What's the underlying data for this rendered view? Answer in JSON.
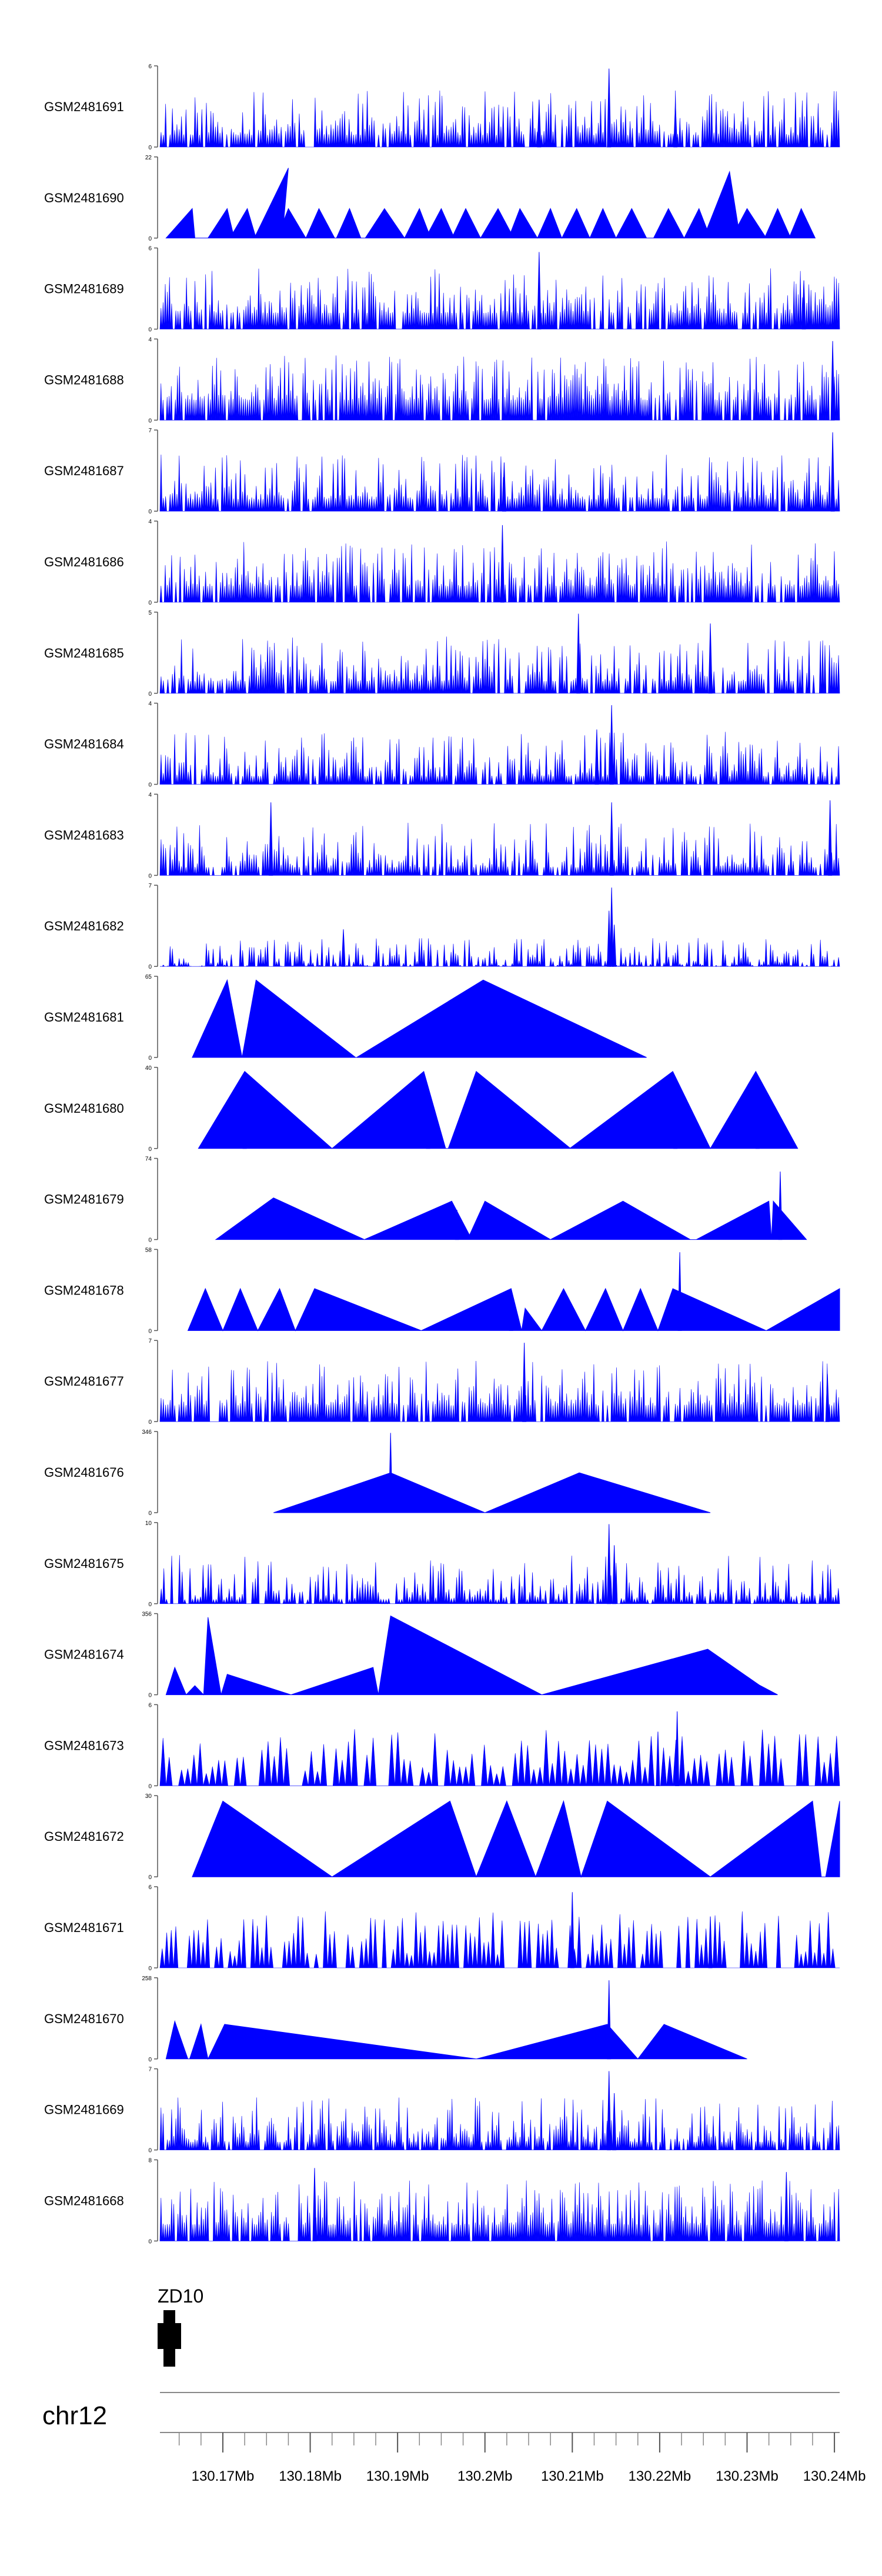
{
  "chart_data": {
    "type": "area",
    "title": "",
    "color": "#0000ff",
    "chromosome": "chr12",
    "gene": {
      "label": "ZD10"
    },
    "xlim": [
      130.1628,
      130.2406
    ],
    "x_ticks": [
      "130.17Mb",
      "130.18Mb",
      "130.19Mb",
      "130.2Mb",
      "130.21Mb",
      "130.22Mb",
      "130.23Mb",
      "130.24Mb"
    ],
    "x_tick_values": [
      130.17,
      130.18,
      130.19,
      130.2,
      130.21,
      130.22,
      130.23,
      130.24
    ],
    "tracks": [
      {
        "name": "GSM2481691",
        "ymax": "6",
        "ymin": "0",
        "style": "dense",
        "seed": 11,
        "n": 300,
        "low": 0.15,
        "spikes": [
          [
            130.2142,
            5.8
          ],
          [
            130.2062,
            3.5
          ],
          [
            130.2218,
            3.2
          ]
        ]
      },
      {
        "name": "GSM2481690",
        "ymax": "22",
        "ymin": "0",
        "style": "peaks",
        "peaks": [
          [
            130.1635,
            130.1668,
            130.1665,
            8
          ],
          [
            130.1683,
            130.1713,
            130.1705,
            8
          ],
          [
            130.1708,
            130.1738,
            130.1728,
            8
          ],
          [
            130.1736,
            130.1768,
            130.1775,
            19
          ],
          [
            130.1762,
            130.1795,
            130.1775,
            8
          ],
          [
            130.1795,
            130.1828,
            130.181,
            8
          ],
          [
            130.183,
            130.1858,
            130.1845,
            8
          ],
          [
            130.1863,
            130.1908,
            130.1885,
            8
          ],
          [
            130.1908,
            130.1938,
            130.1925,
            8
          ],
          [
            130.1932,
            130.1965,
            130.195,
            8
          ],
          [
            130.1962,
            130.1995,
            130.1978,
            8
          ],
          [
            130.1995,
            130.2033,
            130.2015,
            8
          ],
          [
            130.2027,
            130.206,
            130.204,
            8
          ],
          [
            130.206,
            130.2088,
            130.2075,
            8
          ],
          [
            130.2088,
            130.212,
            130.2105,
            8
          ],
          [
            130.212,
            130.215,
            130.2135,
            8
          ],
          [
            130.215,
            130.2185,
            130.2168,
            8
          ],
          [
            130.2193,
            130.2228,
            130.221,
            8
          ],
          [
            130.2228,
            130.2258,
            130.2245,
            8
          ],
          [
            130.225,
            130.2292,
            130.228,
            18
          ],
          [
            130.2282,
            130.2322,
            130.23,
            8
          ],
          [
            130.232,
            130.235,
            130.2335,
            8
          ],
          [
            130.2348,
            130.2378,
            130.2362,
            8
          ]
        ]
      },
      {
        "name": "GSM2481689",
        "ymax": "6",
        "ymin": "0",
        "style": "dense",
        "seed": 23,
        "n": 320,
        "low": 0.2,
        "spikes": [
          [
            130.2062,
            5.7
          ],
          [
            130.2365,
            3.6
          ]
        ]
      },
      {
        "name": "GSM2481688",
        "ymax": "4",
        "ymin": "0",
        "style": "dense",
        "seed": 37,
        "n": 330,
        "low": 0.25,
        "spikes": [
          [
            130.2398,
            3.9
          ]
        ]
      },
      {
        "name": "GSM2481687",
        "ymax": "7",
        "ymin": "0",
        "style": "dense",
        "seed": 41,
        "n": 300,
        "low": 0.15,
        "spikes": [
          [
            130.2398,
            6.8
          ],
          [
            130.2022,
            4.2
          ]
        ]
      },
      {
        "name": "GSM2481686",
        "ymax": "4",
        "ymin": "0",
        "style": "dense",
        "seed": 53,
        "n": 320,
        "low": 0.2,
        "spikes": [
          [
            130.202,
            3.8
          ]
        ]
      },
      {
        "name": "GSM2481685",
        "ymax": "5",
        "ymin": "0",
        "style": "dense",
        "seed": 67,
        "n": 300,
        "low": 0.15,
        "spikes": [
          [
            130.2107,
            4.9
          ],
          [
            130.2258,
            4.3
          ]
        ]
      },
      {
        "name": "GSM2481684",
        "ymax": "4",
        "ymin": "0",
        "style": "dense",
        "seed": 71,
        "n": 300,
        "low": 0.1,
        "spikes": [
          [
            130.2145,
            3.9
          ],
          [
            130.2128,
            2.7
          ]
        ]
      },
      {
        "name": "GSM2481683",
        "ymax": "4",
        "ymin": "0",
        "style": "dense",
        "seed": 83,
        "n": 300,
        "low": 0.1,
        "spikes": [
          [
            130.1755,
            3.6
          ],
          [
            130.2145,
            3.6
          ],
          [
            130.2395,
            3.7
          ]
        ]
      },
      {
        "name": "GSM2481682",
        "ymax": "7",
        "ymin": "0",
        "style": "dense",
        "seed": 97,
        "n": 300,
        "low": 0.0,
        "scale": 0.35,
        "spikes": [
          [
            130.2145,
            6.8
          ],
          [
            130.2142,
            4.8
          ],
          [
            130.2148,
            3.6
          ],
          [
            130.1838,
            3.2
          ]
        ]
      },
      {
        "name": "GSM2481681",
        "ymax": "65",
        "ymin": "0",
        "style": "peaks",
        "peaks": [
          [
            130.1665,
            130.1722,
            130.1705,
            62
          ],
          [
            130.1722,
            130.1852,
            130.1738,
            62
          ],
          [
            130.1853,
            130.2185,
            130.1998,
            62
          ]
        ]
      },
      {
        "name": "GSM2481680",
        "ymax": "40",
        "ymin": "0",
        "style": "peaks",
        "peaks": [
          [
            130.1672,
            130.1825,
            130.1725,
            38
          ],
          [
            130.1825,
            130.1955,
            130.193,
            38
          ],
          [
            130.1958,
            130.2098,
            130.199,
            38
          ],
          [
            130.2097,
            130.2258,
            130.2215,
            38
          ],
          [
            130.2258,
            130.2358,
            130.231,
            38
          ]
        ],
        "spikes": [
          [
            130.1725,
            27
          ],
          [
            130.2218,
            30
          ],
          [
            130.1935,
            29
          ],
          [
            130.2312,
            31
          ]
        ]
      },
      {
        "name": "GSM2481679",
        "ymax": "74",
        "ymin": "0",
        "style": "peaks",
        "peaks": [
          [
            130.1692,
            130.1862,
            130.1758,
            38
          ],
          [
            130.1862,
            130.1985,
            130.1962,
            35
          ],
          [
            130.198,
            130.2075,
            130.2,
            35
          ],
          [
            130.2075,
            130.2235,
            130.2158,
            35
          ],
          [
            130.2242,
            130.2328,
            130.2325,
            35
          ],
          [
            130.2328,
            130.2368,
            130.233,
            35
          ]
        ],
        "spikes": [
          [
            130.2338,
            62
          ],
          [
            130.1968,
            27
          ]
        ]
      },
      {
        "name": "GSM2481678",
        "ymax": "58",
        "ymin": "0",
        "style": "peaks",
        "peaks": [
          [
            130.166,
            130.17,
            130.168,
            30
          ],
          [
            130.17,
            130.174,
            130.172,
            30
          ],
          [
            130.174,
            130.1783,
            130.1765,
            30
          ],
          [
            130.1783,
            130.1927,
            130.1805,
            30
          ],
          [
            130.1927,
            130.2042,
            130.203,
            30
          ],
          [
            130.2042,
            130.2065,
            130.2046,
            16
          ],
          [
            130.2065,
            130.2115,
            130.209,
            30
          ],
          [
            130.2115,
            130.2158,
            130.2138,
            30
          ],
          [
            130.2158,
            130.2198,
            130.2178,
            30
          ],
          [
            130.2198,
            130.2322,
            130.2215,
            30
          ],
          [
            130.2322,
            130.2406,
            130.2406,
            30
          ]
        ],
        "spikes": [
          [
            130.2223,
            56
          ],
          [
            130.203,
            19
          ]
        ]
      },
      {
        "name": "GSM2481677",
        "ymax": "7",
        "ymin": "0",
        "style": "dense",
        "seed": 101,
        "n": 300,
        "low": 0.2,
        "spikes": [
          [
            130.2045,
            6.8
          ],
          [
            130.2392,
            4.1
          ]
        ]
      },
      {
        "name": "GSM2481676",
        "ymax": "346",
        "ymin": "0",
        "style": "peaks",
        "peaks": [
          [
            130.1758,
            130.2,
            130.1892,
            170
          ],
          [
            130.2,
            130.2258,
            130.2108,
            170
          ]
        ],
        "spikes": [
          [
            130.1892,
            340
          ]
        ]
      },
      {
        "name": "GSM2481675",
        "ymax": "10",
        "ymin": "0",
        "style": "dense",
        "seed": 113,
        "n": 260,
        "low": 0.05,
        "spikes": [
          [
            130.2142,
            9.8
          ],
          [
            130.2148,
            7.2
          ]
        ]
      },
      {
        "name": "GSM2481674",
        "ymax": "356",
        "ymin": "0",
        "style": "peaks",
        "peaks": [
          [
            130.1635,
            130.1658,
            130.1645,
            120
          ],
          [
            130.1658,
            130.1678,
            130.1668,
            40
          ],
          [
            130.1678,
            130.1698,
            130.1683,
            340
          ],
          [
            130.1698,
            130.1778,
            130.1705,
            90
          ],
          [
            130.1778,
            130.1878,
            130.1872,
            120
          ],
          [
            130.1878,
            130.2065,
            130.1892,
            346
          ],
          [
            130.2065,
            130.233,
            130.2255,
            200
          ],
          [
            130.2255,
            130.2335,
            130.2256,
            160
          ]
        ]
      },
      {
        "name": "GSM2481673",
        "ymax": "6",
        "ymin": "0",
        "style": "dense",
        "seed": 127,
        "n": 110,
        "low": 0.0,
        "gapfill": 1,
        "spikes": [
          [
            130.222,
            5.5
          ],
          [
            130.2198,
            4.0
          ]
        ]
      },
      {
        "name": "GSM2481672",
        "ymax": "30",
        "ymin": "0",
        "style": "peaks",
        "peaks": [
          [
            130.1665,
            130.1825,
            130.17,
            28
          ],
          [
            130.1825,
            130.199,
            130.196,
            28
          ],
          [
            130.199,
            130.2058,
            130.2025,
            28
          ],
          [
            130.2058,
            130.211,
            130.209,
            28
          ],
          [
            130.211,
            130.2258,
            130.214,
            28
          ],
          [
            130.2258,
            130.2385,
            130.2375,
            28
          ],
          [
            130.239,
            130.2406,
            130.2406,
            28
          ]
        ]
      },
      {
        "name": "GSM2481671",
        "ymax": "6",
        "ymin": "0",
        "style": "dense",
        "seed": 131,
        "n": 150,
        "low": 0.0,
        "gapfill": 1,
        "spikes": [
          [
            130.21,
            5.6
          ],
          [
            130.2258,
            3.8
          ]
        ]
      },
      {
        "name": "GSM2481670",
        "ymax": "258",
        "ymin": "0",
        "style": "peaks",
        "peaks": [
          [
            130.1635,
            130.166,
            130.1645,
            120
          ],
          [
            130.1662,
            130.1683,
            130.1675,
            110
          ],
          [
            130.1683,
            130.199,
            130.1702,
            110
          ],
          [
            130.199,
            130.2175,
            130.214,
            110
          ],
          [
            130.2175,
            130.23,
            130.2205,
            110
          ]
        ],
        "spikes": [
          [
            130.2142,
            250
          ]
        ]
      },
      {
        "name": "GSM2481669",
        "ymax": "7",
        "ymin": "0",
        "style": "dense",
        "seed": 139,
        "n": 320,
        "low": 0.1,
        "spikes": [
          [
            130.2142,
            6.8
          ],
          [
            130.2148,
            4.9
          ]
        ]
      },
      {
        "name": "GSM2481668",
        "ymax": "8",
        "ymin": "0",
        "style": "dense",
        "seed": 149,
        "n": 320,
        "low": 0.2,
        "spikes": [
          [
            130.1805,
            7.2
          ],
          [
            130.2345,
            6.8
          ]
        ]
      }
    ]
  }
}
